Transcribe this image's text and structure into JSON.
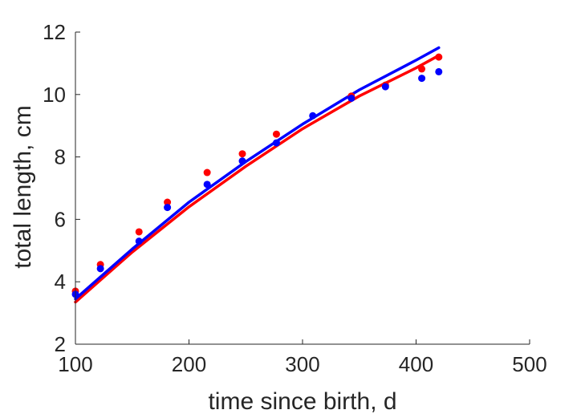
{
  "chart_data": {
    "type": "scatter",
    "title": "",
    "xlabel": "time since birth, d",
    "ylabel": "total length, cm",
    "xlim": [
      100,
      500
    ],
    "ylim": [
      2,
      12
    ],
    "xticks": [
      100,
      200,
      300,
      400,
      500
    ],
    "yticks": [
      2,
      4,
      6,
      8,
      10,
      12
    ],
    "grid": false,
    "legend": "none",
    "series": [
      {
        "kind": "points",
        "color": "#ff0000",
        "points": [
          {
            "x": 100,
            "y": 3.7
          },
          {
            "x": 122,
            "y": 4.55
          },
          {
            "x": 156,
            "y": 5.6
          },
          {
            "x": 181,
            "y": 6.55
          },
          {
            "x": 216,
            "y": 7.5
          },
          {
            "x": 247,
            "y": 8.1
          },
          {
            "x": 277,
            "y": 8.73
          },
          {
            "x": 343,
            "y": 9.95
          },
          {
            "x": 373,
            "y": 10.3
          },
          {
            "x": 405,
            "y": 10.82
          },
          {
            "x": 420,
            "y": 11.2
          }
        ]
      },
      {
        "kind": "points",
        "color": "#0000ff",
        "points": [
          {
            "x": 100,
            "y": 3.6
          },
          {
            "x": 122,
            "y": 4.42
          },
          {
            "x": 156,
            "y": 5.3
          },
          {
            "x": 181,
            "y": 6.38
          },
          {
            "x": 216,
            "y": 7.12
          },
          {
            "x": 247,
            "y": 7.87
          },
          {
            "x": 277,
            "y": 8.45
          },
          {
            "x": 309,
            "y": 9.32
          },
          {
            "x": 343,
            "y": 9.88
          },
          {
            "x": 373,
            "y": 10.25
          },
          {
            "x": 405,
            "y": 10.52
          },
          {
            "x": 420,
            "y": 10.73
          }
        ]
      },
      {
        "kind": "line",
        "color": "#ff0000",
        "points": [
          {
            "x": 100,
            "y": 3.35
          },
          {
            "x": 150,
            "y": 4.95
          },
          {
            "x": 200,
            "y": 6.4
          },
          {
            "x": 250,
            "y": 7.7
          },
          {
            "x": 300,
            "y": 8.9
          },
          {
            "x": 350,
            "y": 9.95
          },
          {
            "x": 400,
            "y": 10.85
          },
          {
            "x": 420,
            "y": 11.25
          }
        ]
      },
      {
        "kind": "line",
        "color": "#0000ff",
        "points": [
          {
            "x": 100,
            "y": 3.45
          },
          {
            "x": 150,
            "y": 5.05
          },
          {
            "x": 200,
            "y": 6.55
          },
          {
            "x": 250,
            "y": 7.85
          },
          {
            "x": 300,
            "y": 9.05
          },
          {
            "x": 350,
            "y": 10.15
          },
          {
            "x": 400,
            "y": 11.1
          },
          {
            "x": 420,
            "y": 11.5
          }
        ]
      }
    ]
  }
}
